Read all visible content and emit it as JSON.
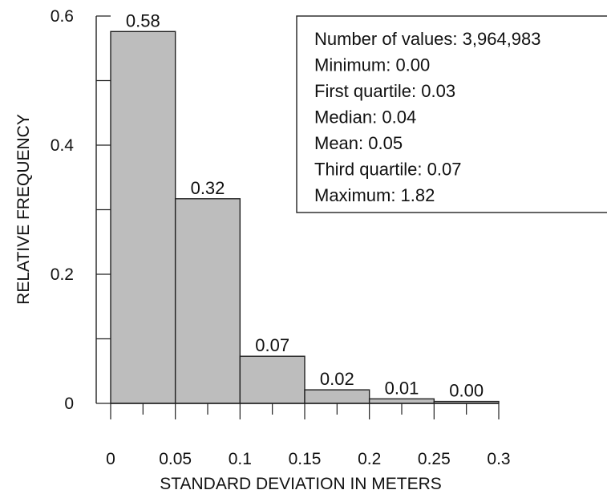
{
  "chart_data": {
    "type": "bar",
    "xlabel": "STANDARD DEVIATION IN METERS",
    "ylabel": "RELATIVE FREQUENCY",
    "bin_edges": [
      0,
      0.05,
      0.1,
      0.15,
      0.2,
      0.25,
      0.3
    ],
    "values": [
      0.576,
      0.317,
      0.073,
      0.021,
      0.007,
      0.003
    ],
    "data_labels": [
      "0.58",
      "0.32",
      "0.07",
      "0.02",
      "0.01",
      "0.00"
    ],
    "xticks": [
      "0",
      "0.05",
      "0.1",
      "0.15",
      "0.2",
      "0.25",
      "0.3"
    ],
    "yticks": [
      "0",
      "0.2",
      "0.4",
      "0.6"
    ],
    "xlim": [
      0,
      0.3
    ],
    "ylim": [
      0,
      0.6
    ],
    "bar_color": "#bdbdbd",
    "grid": false,
    "legend": "none",
    "annotation": {
      "placement": "top-right",
      "lines": [
        "Number of values: 3,964,983",
        "Minimum: 0.00",
        "First quartile: 0.03",
        "Median: 0.04",
        "Mean: 0.05",
        "Third quartile: 0.07",
        "Maximum: 1.82"
      ]
    }
  }
}
